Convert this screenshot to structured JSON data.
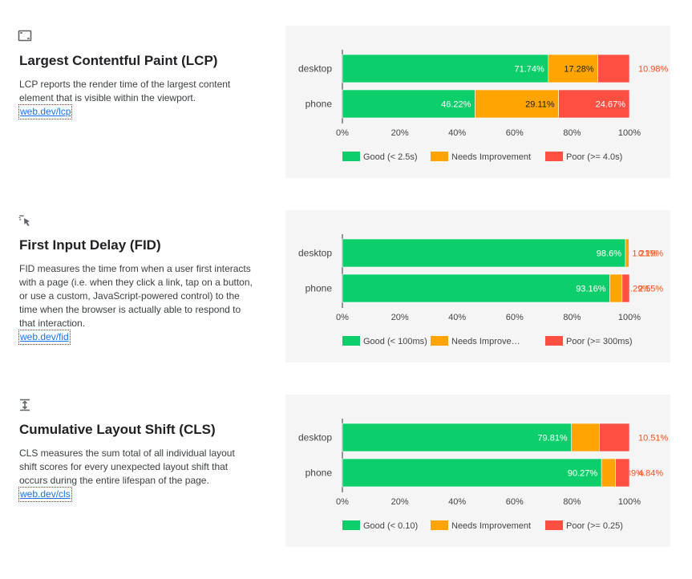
{
  "metrics": [
    {
      "icon": "lcp-frame-icon",
      "title": "Largest Contentful Paint (LCP)",
      "description": "LCP reports the render time of the largest content element that is visible within the viewport.",
      "link": "web.dev/lcp"
    },
    {
      "icon": "cursor-click-icon",
      "title": "First Input Delay (FID)",
      "description": "FID measures the time from when a user first interacts with a page (i.e. when they click a link, tap on a button, or use a custom, JavaScript-powered control) to the time when the browser is actually able to respond to that interaction.",
      "link": "web.dev/fid"
    },
    {
      "icon": "vertical-expand-icon",
      "title": "Cumulative Layout Shift (CLS)",
      "description": "CLS measures the sum total of all individual layout shift scores for every unexpected layout shift that occurs during the entire lifespan of the page.",
      "link": "web.dev/cls"
    }
  ],
  "colors": {
    "good": "#0cce6b",
    "needs": "#ffa400",
    "poor": "#ff4e42",
    "outside_label": "#f4511e"
  },
  "chart_data": [
    {
      "type": "bar",
      "orientation": "horizontal",
      "stacked": true,
      "categories": [
        "desktop",
        "phone"
      ],
      "series": [
        {
          "name": "Good (< 2.5s)",
          "values": [
            71.74,
            46.22
          ],
          "labels": [
            "71.74%",
            "46.22%"
          ]
        },
        {
          "name": "Needs Improvement",
          "values": [
            17.28,
            29.11
          ],
          "labels": [
            "17.28%",
            "29.11%"
          ]
        },
        {
          "name": "Poor (>= 4.0s)",
          "values": [
            10.98,
            24.67
          ],
          "labels": [
            "10.98%",
            "24.67%"
          ]
        }
      ],
      "xlim": [
        0,
        100
      ],
      "xticks": [
        "0%",
        "20%",
        "40%",
        "60%",
        "80%",
        "100%"
      ],
      "legend": "bottom"
    },
    {
      "type": "bar",
      "orientation": "horizontal",
      "stacked": true,
      "categories": [
        "desktop",
        "phone"
      ],
      "series": [
        {
          "name": "Good (< 100ms)",
          "legend_label": "Good (< 100ms)",
          "values": [
            98.6,
            93.16
          ],
          "labels": [
            "98.6%",
            "93.16%"
          ]
        },
        {
          "name": "Needs Improvement",
          "legend_label": "Needs Improve…",
          "values": [
            1.21,
            4.29
          ],
          "labels": [
            "1.21%",
            "4.29%"
          ]
        },
        {
          "name": "Poor (>= 300ms)",
          "legend_label": "Poor (>= 300ms)",
          "values": [
            0.19,
            2.55
          ],
          "labels": [
            "0.19%",
            "2.55%"
          ]
        }
      ],
      "xlim": [
        0,
        100
      ],
      "xticks": [
        "0%",
        "20%",
        "40%",
        "60%",
        "80%",
        "100%"
      ],
      "legend": "bottom"
    },
    {
      "type": "bar",
      "orientation": "horizontal",
      "stacked": true,
      "categories": [
        "desktop",
        "phone"
      ],
      "series": [
        {
          "name": "Good (< 0.10)",
          "values": [
            79.81,
            90.27
          ],
          "labels": [
            "79.81%",
            "90.27%"
          ]
        },
        {
          "name": "Needs Improvement",
          "values": [
            9.68,
            4.89
          ],
          "labels": [
            "9.68%",
            "4.89%"
          ]
        },
        {
          "name": "Poor (>= 0.25)",
          "values": [
            10.51,
            4.84
          ],
          "labels": [
            "10.51%",
            "4.84%"
          ]
        }
      ],
      "xlim": [
        0,
        100
      ],
      "xticks": [
        "0%",
        "20%",
        "40%",
        "60%",
        "80%",
        "100%"
      ],
      "legend": "bottom"
    }
  ]
}
